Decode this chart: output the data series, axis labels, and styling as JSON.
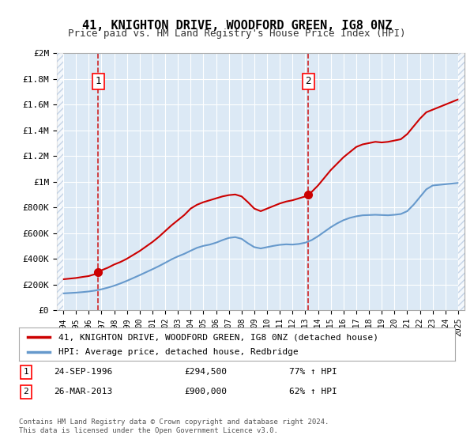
{
  "title": "41, KNIGHTON DRIVE, WOODFORD GREEN, IG8 0NZ",
  "subtitle": "Price paid vs. HM Land Registry's House Price Index (HPI)",
  "xlabel": "",
  "ylabel": "",
  "bg_color": "#dce9f5",
  "plot_bg_color": "#dce9f5",
  "grid_color": "#ffffff",
  "hatch_color": "#b0c4de",
  "red_line_color": "#cc0000",
  "blue_line_color": "#6699cc",
  "sale1_date": "24-SEP-1996",
  "sale1_price": 294500,
  "sale1_label": "1",
  "sale2_date": "26-MAR-2013",
  "sale2_price": 900000,
  "sale2_label": "2",
  "sale1_x": 1996.73,
  "sale2_x": 2013.23,
  "ylim": [
    0,
    2000000
  ],
  "xlim_left": 1993.5,
  "xlim_right": 2025.5,
  "legend_line1": "41, KNIGHTON DRIVE, WOODFORD GREEN, IG8 0NZ (detached house)",
  "legend_line2": "HPI: Average price, detached house, Redbridge",
  "footnote": "Contains HM Land Registry data © Crown copyright and database right 2024.\nThis data is licensed under the Open Government Licence v3.0.",
  "table_row1": "1    24-SEP-1996         £294,500        77% ↑ HPI",
  "table_row2": "2    26-MAR-2013         £900,000        62% ↑ HPI",
  "red_x": [
    1994.0,
    1994.5,
    1995.0,
    1995.5,
    1996.0,
    1996.5,
    1996.73,
    1997.0,
    1997.5,
    1998.0,
    1998.5,
    1999.0,
    1999.5,
    2000.0,
    2000.5,
    2001.0,
    2001.5,
    2002.0,
    2002.5,
    2003.0,
    2003.5,
    2004.0,
    2004.5,
    2005.0,
    2005.5,
    2006.0,
    2006.5,
    2007.0,
    2007.5,
    2008.0,
    2008.5,
    2009.0,
    2009.5,
    2010.0,
    2010.5,
    2011.0,
    2011.5,
    2012.0,
    2012.5,
    2013.0,
    2013.23,
    2013.5,
    2014.0,
    2014.5,
    2015.0,
    2015.5,
    2016.0,
    2016.5,
    2017.0,
    2017.5,
    2018.0,
    2018.5,
    2019.0,
    2019.5,
    2020.0,
    2020.5,
    2021.0,
    2021.5,
    2022.0,
    2022.5,
    2023.0,
    2023.5,
    2024.0,
    2024.5,
    2025.0
  ],
  "red_y": [
    240000,
    245000,
    250000,
    258000,
    265000,
    280000,
    294500,
    310000,
    330000,
    355000,
    375000,
    400000,
    430000,
    460000,
    495000,
    530000,
    570000,
    615000,
    660000,
    700000,
    740000,
    790000,
    820000,
    840000,
    855000,
    870000,
    885000,
    895000,
    900000,
    885000,
    840000,
    790000,
    770000,
    790000,
    810000,
    830000,
    845000,
    855000,
    870000,
    885000,
    900000,
    920000,
    970000,
    1030000,
    1090000,
    1140000,
    1190000,
    1230000,
    1270000,
    1290000,
    1300000,
    1310000,
    1305000,
    1310000,
    1320000,
    1330000,
    1370000,
    1430000,
    1490000,
    1540000,
    1560000,
    1580000,
    1600000,
    1620000,
    1640000
  ],
  "blue_x": [
    1994.0,
    1994.5,
    1995.0,
    1995.5,
    1996.0,
    1996.5,
    1997.0,
    1997.5,
    1998.0,
    1998.5,
    1999.0,
    1999.5,
    2000.0,
    2000.5,
    2001.0,
    2001.5,
    2002.0,
    2002.5,
    2003.0,
    2003.5,
    2004.0,
    2004.5,
    2005.0,
    2005.5,
    2006.0,
    2006.5,
    2007.0,
    2007.5,
    2008.0,
    2008.5,
    2009.0,
    2009.5,
    2010.0,
    2010.5,
    2011.0,
    2011.5,
    2012.0,
    2012.5,
    2013.0,
    2013.5,
    2014.0,
    2014.5,
    2015.0,
    2015.5,
    2016.0,
    2016.5,
    2017.0,
    2017.5,
    2018.0,
    2018.5,
    2019.0,
    2019.5,
    2020.0,
    2020.5,
    2021.0,
    2021.5,
    2022.0,
    2022.5,
    2023.0,
    2023.5,
    2024.0,
    2024.5,
    2025.0
  ],
  "blue_y": [
    130000,
    133000,
    136000,
    140000,
    145000,
    152000,
    162000,
    175000,
    190000,
    208000,
    228000,
    250000,
    272000,
    295000,
    318000,
    342000,
    368000,
    395000,
    418000,
    438000,
    462000,
    485000,
    500000,
    510000,
    525000,
    545000,
    562000,
    568000,
    555000,
    520000,
    490000,
    480000,
    490000,
    500000,
    508000,
    512000,
    510000,
    515000,
    525000,
    545000,
    575000,
    610000,
    645000,
    675000,
    700000,
    718000,
    730000,
    738000,
    740000,
    742000,
    740000,
    738000,
    742000,
    748000,
    770000,
    820000,
    880000,
    940000,
    970000,
    975000,
    980000,
    985000,
    990000
  ]
}
